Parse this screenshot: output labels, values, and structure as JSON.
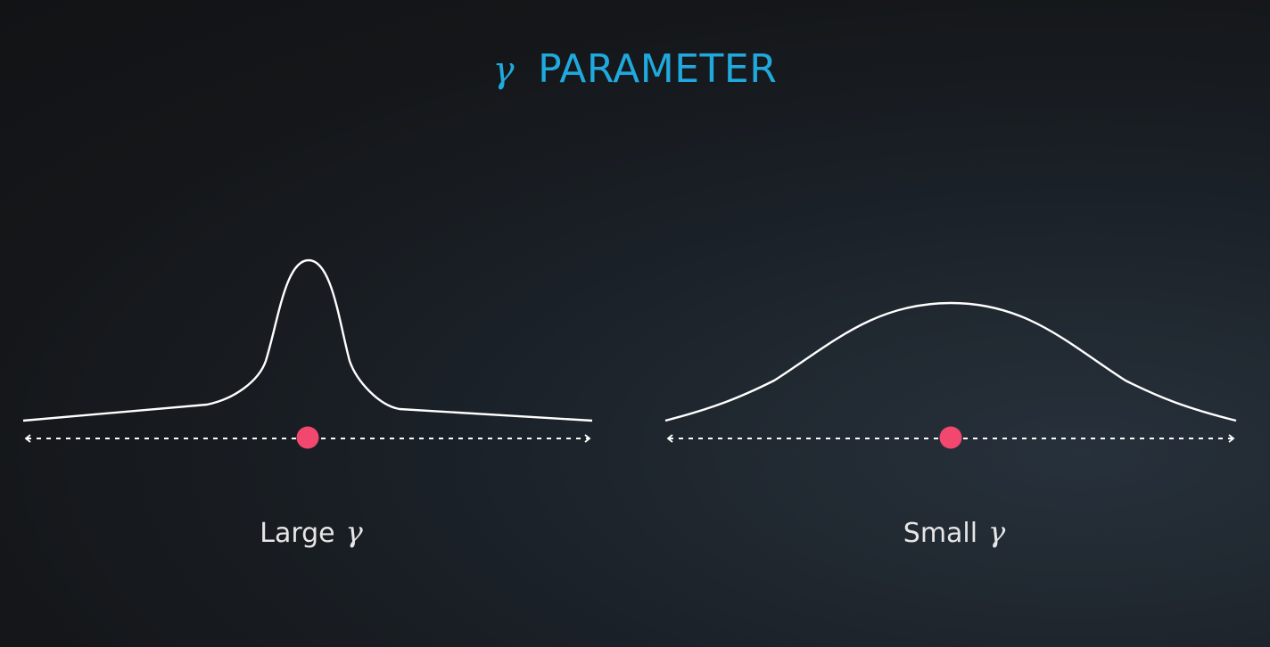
{
  "title": {
    "symbol": "γ",
    "text": "PARAMETER"
  },
  "panels": [
    {
      "label": "Large",
      "symbol": "γ",
      "curve": "narrow-peak"
    },
    {
      "label": "Small",
      "symbol": "γ",
      "curve": "wide-peak"
    }
  ],
  "colors": {
    "title": "#1fa9dc",
    "curve": "#ffffff",
    "axis": "#ffffff",
    "point": "#f2476e",
    "caption": "#e6e6e6"
  }
}
